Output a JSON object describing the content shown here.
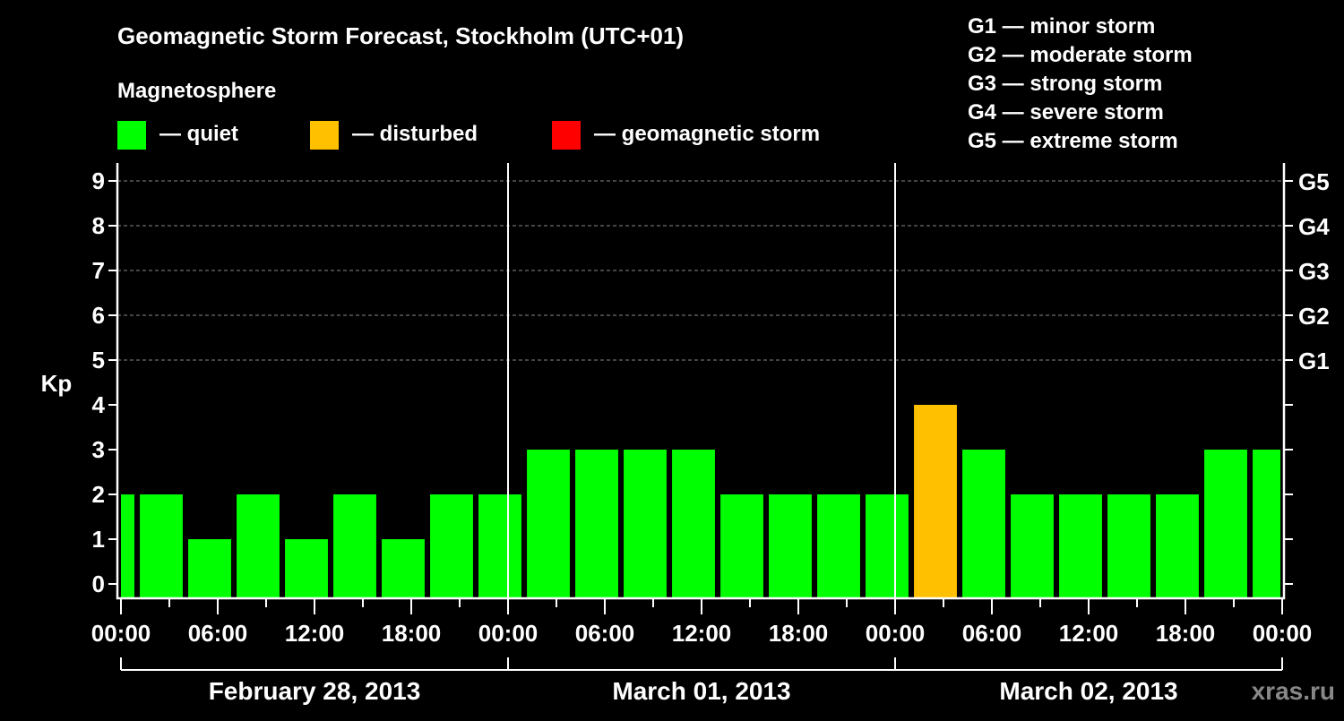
{
  "chart_data": {
    "type": "bar",
    "title": "Geomagnetic Storm Forecast, Stockholm (UTC+01)",
    "legend_title": "Magnetosphere",
    "legend": [
      {
        "label": "— quiet",
        "color": "#00ff00"
      },
      {
        "label": "— disturbed",
        "color": "#ffc000"
      },
      {
        "label": "— geomagnetic storm",
        "color": "#ff0000"
      }
    ],
    "storm_scale": [
      "G1 — minor storm",
      "G2 — moderate storm",
      "G3 — strong storm",
      "G4 — severe storm",
      "G5 — extreme storm"
    ],
    "ylabel": "Kp",
    "ylim": [
      0,
      9
    ],
    "yticks": [
      "0",
      "1",
      "2",
      "3",
      "4",
      "5",
      "6",
      "7",
      "8",
      "9"
    ],
    "right_ticks": [
      {
        "kp": 5,
        "label": "G1"
      },
      {
        "kp": 6,
        "label": "G2"
      },
      {
        "kp": 7,
        "label": "G3"
      },
      {
        "kp": 8,
        "label": "G4"
      },
      {
        "kp": 9,
        "label": "G5"
      }
    ],
    "xticks": [
      "00:00",
      "06:00",
      "12:00",
      "18:00",
      "00:00",
      "06:00",
      "12:00",
      "18:00",
      "00:00",
      "06:00",
      "12:00",
      "18:00",
      "00:00"
    ],
    "days": [
      "February 28, 2013",
      "March 01, 2013",
      "March 02, 2013"
    ],
    "interval_hours": 3,
    "first_interval_start_hour": -2,
    "values": [
      2,
      2,
      1,
      2,
      1,
      2,
      1,
      2,
      2,
      3,
      3,
      3,
      3,
      2,
      2,
      2,
      2,
      4,
      3,
      2,
      2,
      2,
      2,
      3,
      3
    ],
    "colors": {
      "quiet": "#00ff00",
      "disturbed": "#ffc000",
      "storm": "#ff0000"
    },
    "watermark": "xras.ru"
  }
}
